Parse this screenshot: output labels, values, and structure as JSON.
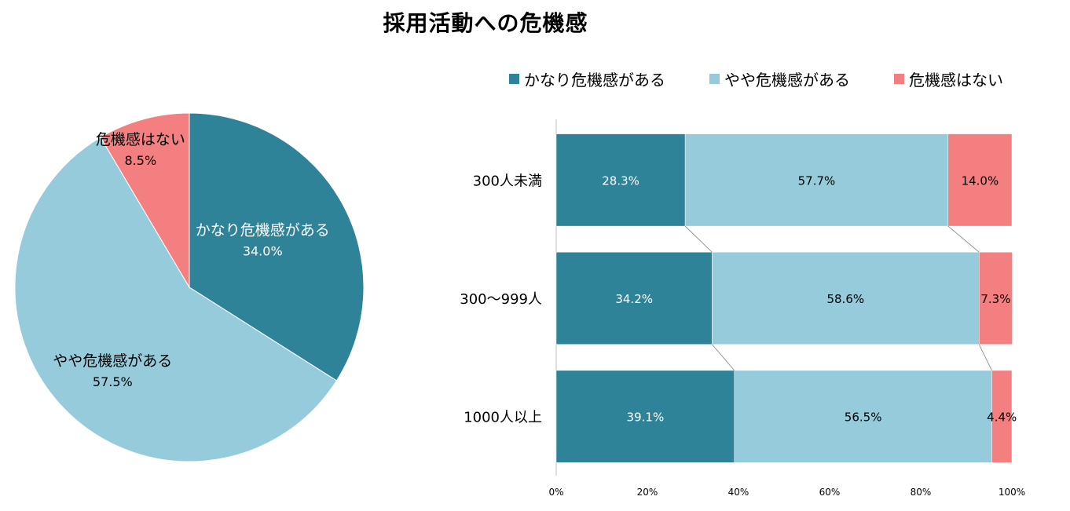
{
  "title": "採用活動への危機感",
  "colors": {
    "very_concerned": "#2f8399",
    "somewhat_concerned": "#95cbdb",
    "not_concerned": "#f47f80"
  },
  "chart_data": [
    {
      "type": "pie",
      "title": "",
      "slices": [
        {
          "label": "かなり危機感がある",
          "value": 34.0,
          "display": "34.0%",
          "color_key": "very_concerned"
        },
        {
          "label": "やや危機感がある",
          "value": 57.5,
          "display": "57.5%",
          "color_key": "somewhat_concerned"
        },
        {
          "label": "危機感はない",
          "value": 8.5,
          "display": "8.5%",
          "color_key": "not_concerned"
        }
      ]
    },
    {
      "type": "bar",
      "orientation": "horizontal",
      "stacked": "percent",
      "legend_position": "top",
      "legend": [
        "かなり危機感がある",
        "やや危機感がある",
        "危機感はない"
      ],
      "categories": [
        "300人未満",
        "300～999人",
        "1000人以上"
      ],
      "series": [
        {
          "name": "かなり危機感がある",
          "color_key": "very_concerned",
          "values": [
            28.3,
            34.2,
            39.1
          ],
          "labels": [
            "28.3%",
            "34.2%",
            "39.1%"
          ]
        },
        {
          "name": "やや危機感がある",
          "color_key": "somewhat_concerned",
          "values": [
            57.7,
            58.6,
            56.5
          ],
          "labels": [
            "57.7%",
            "58.6%",
            "56.5%"
          ]
        },
        {
          "name": "危機感はない",
          "color_key": "not_concerned",
          "values": [
            14.0,
            7.3,
            4.4
          ],
          "labels": [
            "14.0%",
            "7.3%",
            "4.4%"
          ]
        }
      ],
      "xlim": [
        0,
        100
      ],
      "x_ticks": [
        "0%",
        "20%",
        "40%",
        "60%",
        "80%",
        "100%"
      ],
      "series_lines": true,
      "grid": false
    }
  ]
}
